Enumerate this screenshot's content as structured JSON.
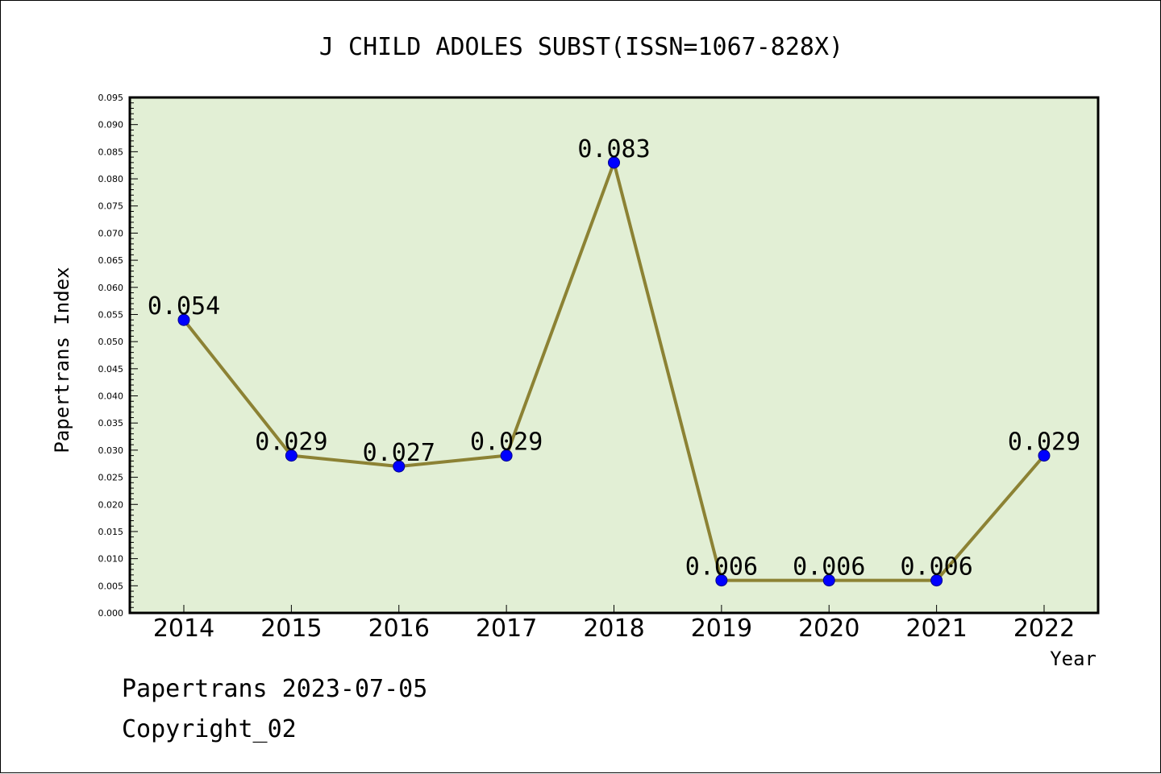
{
  "chart_data": {
    "type": "line",
    "title": "J CHILD ADOLES SUBST(ISSN=1067-828X)",
    "xlabel": "Year",
    "ylabel": "Papertrans Index",
    "categories": [
      "2014",
      "2015",
      "2016",
      "2017",
      "2018",
      "2019",
      "2020",
      "2021",
      "2022"
    ],
    "series": [
      {
        "values": [
          0.054,
          0.029,
          0.027,
          0.029,
          0.083,
          0.006,
          0.006,
          0.006,
          0.029
        ],
        "labels": [
          "0.054",
          "0.029",
          "0.027",
          "0.029",
          "0.083",
          "0.006",
          "0.006",
          "0.006",
          "0.029"
        ]
      }
    ],
    "ylim": [
      0,
      0.095
    ],
    "yticks": [
      "0.000",
      "0.005",
      "0.010",
      "0.015",
      "0.020",
      "0.025",
      "0.030",
      "0.035",
      "0.040",
      "0.045",
      "0.050",
      "0.055",
      "0.060",
      "0.065",
      "0.070",
      "0.075",
      "0.080",
      "0.085",
      "0.090",
      "0.095"
    ],
    "grid": false,
    "legend": "none"
  },
  "footer": {
    "line1": "Papertrans 2023-07-05",
    "line2": "Copyright_02"
  },
  "colors": {
    "plot_background": "#e2efd5",
    "line": "#8c8234",
    "marker": "#0000ff",
    "axis": "#000000"
  }
}
